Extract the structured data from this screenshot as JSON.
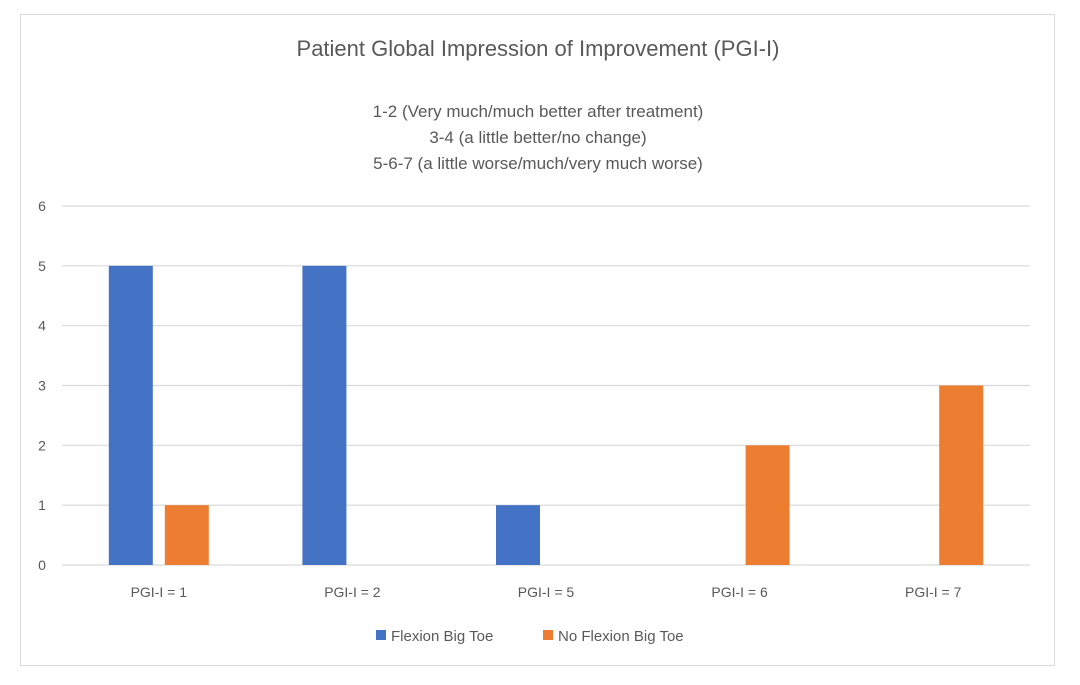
{
  "chart_data": {
    "type": "bar",
    "title": "Patient Global Impression of Improvement (PGI-I)",
    "subtitle_lines": [
      "1-2 (Very much/much better after treatment)",
      "3-4 (a little better/no change)",
      "5-6-7 (a little worse/much/very much worse)"
    ],
    "categories": [
      "PGI-I = 1",
      "PGI-I = 2",
      "PGI-I = 5",
      "PGI-I = 6",
      "PGI-I = 7"
    ],
    "series": [
      {
        "name": "Flexion Big Toe",
        "values": [
          5,
          5,
          1,
          0,
          0
        ],
        "color": "#4472C4"
      },
      {
        "name": "No Flexion Big Toe",
        "values": [
          1,
          0,
          0,
          2,
          3
        ],
        "color": "#ED7D31"
      }
    ],
    "ylim": [
      0,
      6
    ],
    "yticks": [
      0,
      1,
      2,
      3,
      4,
      5,
      6
    ],
    "grid": true,
    "gridline_color": "#d9d9d9",
    "legend_position": "bottom"
  }
}
